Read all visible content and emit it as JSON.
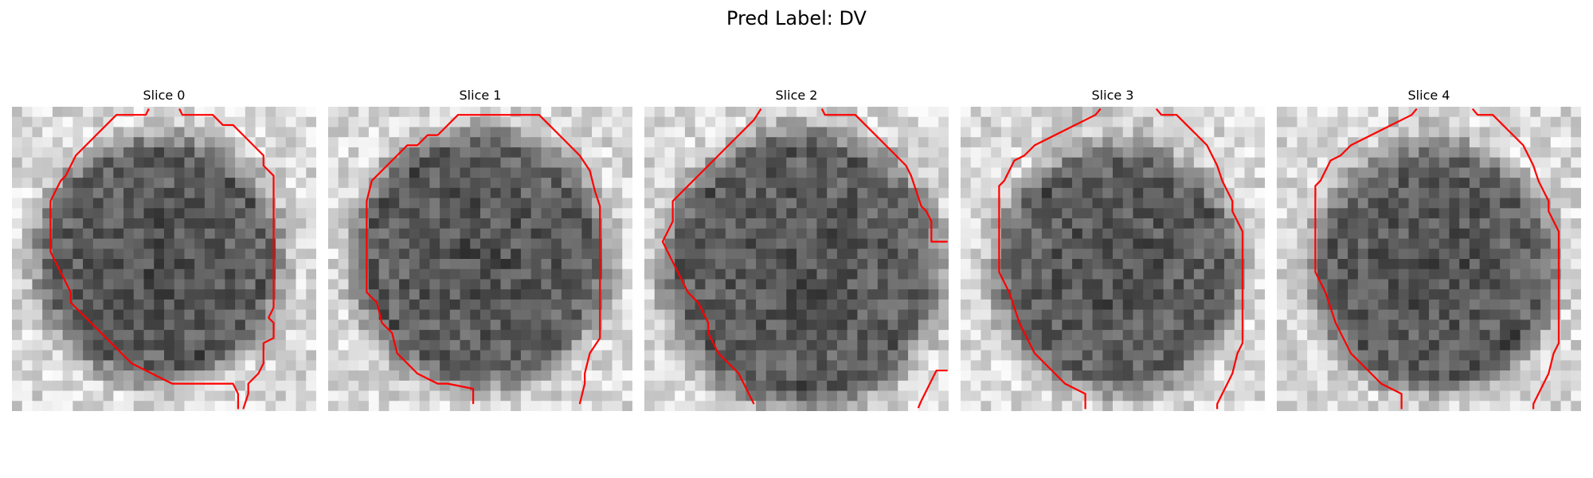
{
  "figure": {
    "title": "Pred Label: DV"
  },
  "panels": [
    {
      "title": "Slice 0"
    },
    {
      "title": "Slice 1"
    },
    {
      "title": "Slice 2"
    },
    {
      "title": "Slice 3"
    },
    {
      "title": "Slice 4"
    }
  ],
  "colors": {
    "contour": "#ff0000",
    "background": "#ffffff"
  },
  "image": {
    "colormap": "gray",
    "axes": "off",
    "grid_size": [
      30,
      30
    ]
  }
}
